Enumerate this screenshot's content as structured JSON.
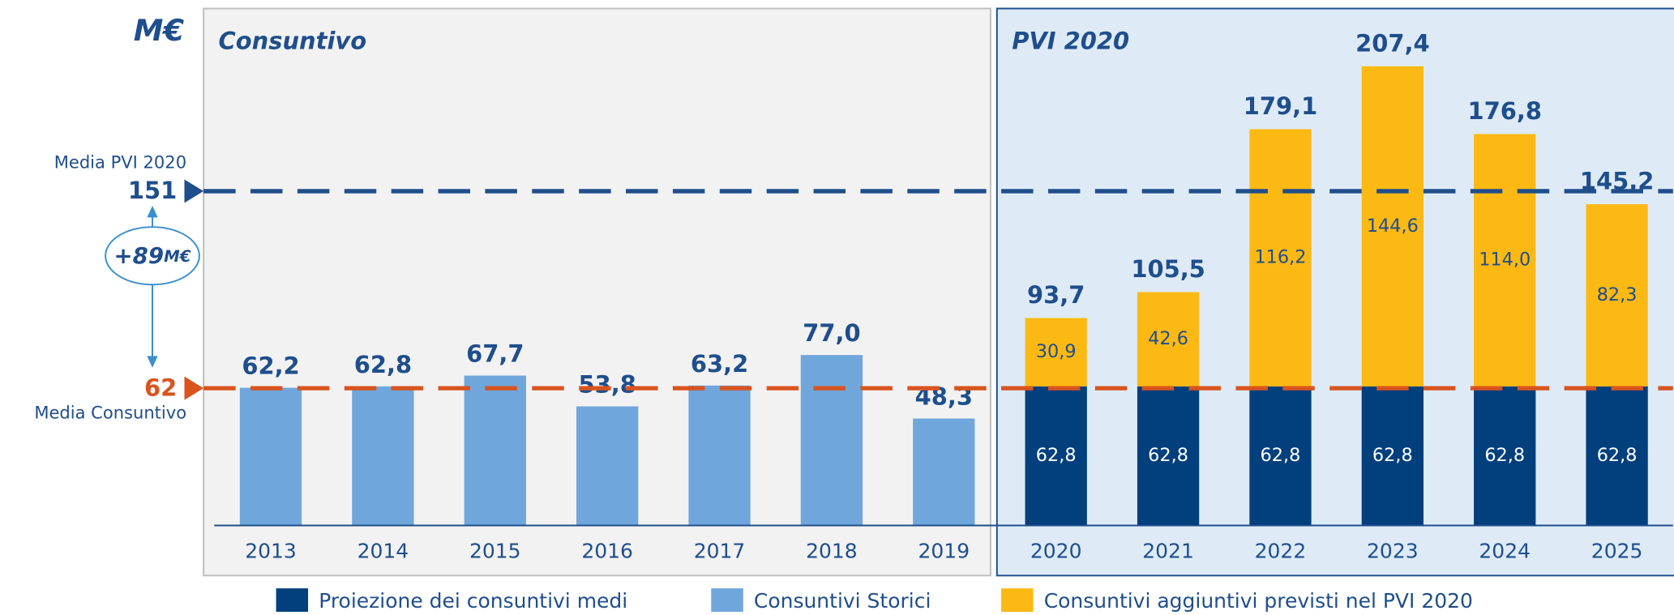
{
  "chart_data": {
    "type": "stacked_bar",
    "unit": "M€",
    "sections": [
      "Consuntivo",
      "PVI 2020"
    ],
    "categories": [
      "2013",
      "2014",
      "2015",
      "2016",
      "2017",
      "2018",
      "2019",
      "2020",
      "2021",
      "2022",
      "2023",
      "2024",
      "2025"
    ],
    "series": [
      {
        "name": "Proiezione dei consuntivi medi",
        "color": "#013f7d",
        "values": [
          null,
          null,
          null,
          null,
          null,
          null,
          null,
          62.8,
          62.8,
          62.8,
          62.8,
          62.8,
          62.8
        ],
        "value_labels": [
          null,
          null,
          null,
          null,
          null,
          null,
          null,
          "62,8",
          "62,8",
          "62,8",
          "62,8",
          "62,8",
          "62,8"
        ]
      },
      {
        "name": "Consuntivi Storici",
        "color": "#6fa6dc",
        "values": [
          62.2,
          62.8,
          67.7,
          53.8,
          63.2,
          77.0,
          48.3,
          null,
          null,
          null,
          null,
          null,
          null
        ],
        "value_labels": [
          "62,2",
          "62,8",
          "67,7",
          "53,8",
          "63,2",
          "77,0",
          "48,3",
          null,
          null,
          null,
          null,
          null,
          null
        ]
      },
      {
        "name": "Consuntivi aggiuntivi previsti nel PVI 2020",
        "color": "#fdb913",
        "values": [
          null,
          null,
          null,
          null,
          null,
          null,
          null,
          30.9,
          42.6,
          116.2,
          144.6,
          114.0,
          82.3
        ],
        "value_labels": [
          null,
          null,
          null,
          null,
          null,
          null,
          null,
          "30,9",
          "42,6",
          "116,2",
          "144,6",
          "114,0",
          "82,3"
        ]
      }
    ],
    "totals": [
      null,
      null,
      null,
      null,
      null,
      null,
      null,
      93.7,
      105.5,
      179.1,
      207.4,
      176.8,
      145.2
    ],
    "total_labels": [
      null,
      null,
      null,
      null,
      null,
      null,
      null,
      "93,7",
      "105,5",
      "179,1",
      "207,4",
      "176,8",
      "145,2"
    ],
    "reference_lines": [
      {
        "label": "Media PVI 2020",
        "value": 151,
        "color": "#1f4e8c"
      },
      {
        "label": "Media Consuntivo",
        "value": 62,
        "color": "#d9541e"
      }
    ],
    "annotation": [
      "+89",
      "M€"
    ],
    "ylim": [
      0,
      233.5
    ]
  }
}
